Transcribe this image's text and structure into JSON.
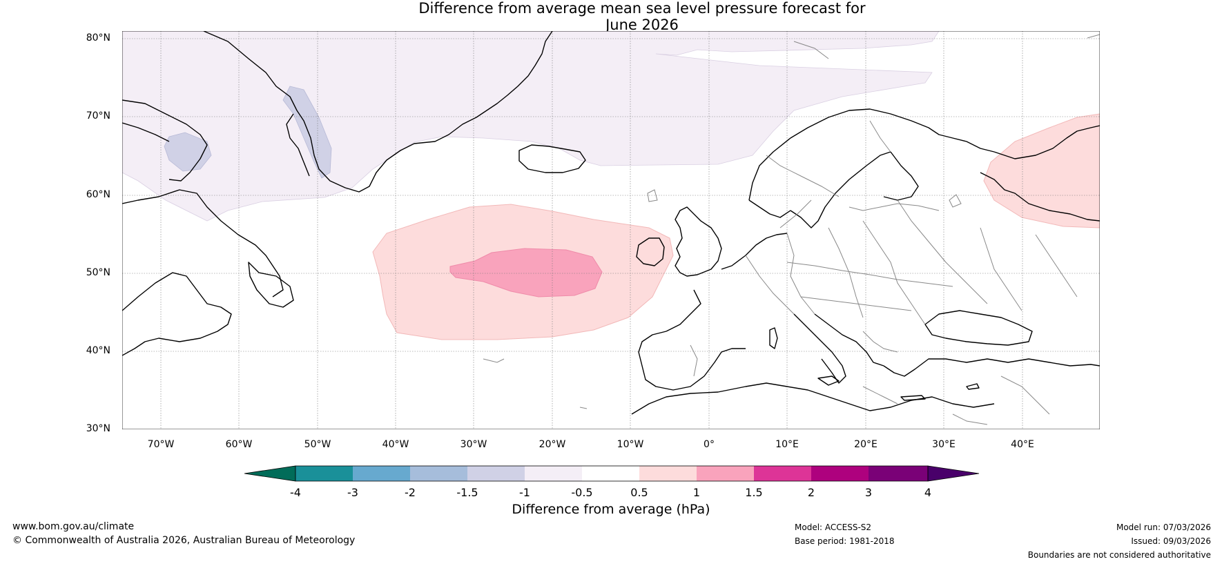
{
  "title": {
    "line1": "Difference from average mean sea level pressure forecast for",
    "line2": "June 2026"
  },
  "axes": {
    "lat_labels": [
      "80°N",
      "70°N",
      "60°N",
      "50°N",
      "40°N",
      "30°N"
    ],
    "lon_labels": [
      "70°W",
      "60°W",
      "50°W",
      "40°W",
      "30°W",
      "20°W",
      "10°W",
      "0°",
      "10°E",
      "20°E",
      "30°E",
      "40°E"
    ]
  },
  "colorbar": {
    "title": "Difference from average (hPa)",
    "ticks": [
      "-4",
      "-3",
      "-2",
      "-1.5",
      "-1",
      "-0.5",
      "0.5",
      "1",
      "1.5",
      "2",
      "3",
      "4"
    ],
    "colors": [
      "#1a9099",
      "#67a9cf",
      "#a6bddb",
      "#d0d1e6",
      "#f4eef6",
      "#ffffff",
      "#fddcdc",
      "#f9a3bc",
      "#dd3497",
      "#ae017e",
      "#7a0177"
    ],
    "under_color": "#016c59",
    "over_color": "#49006a"
  },
  "footer": {
    "url": "www.bom.gov.au/climate",
    "copyright": "© Commonwealth of Australia 2026, Australian Bureau of Meteorology",
    "model": "Model: ACCESS-S2",
    "base_period": "Base period: 1981-2018",
    "model_run": "Model run: 07/03/2026",
    "issued": "Issued: 09/03/2026",
    "boundaries": "Boundaries are not considered authoritative"
  }
}
